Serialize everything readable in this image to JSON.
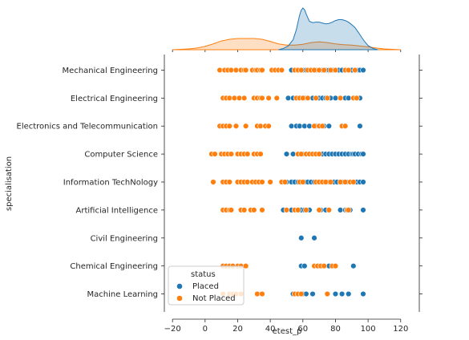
{
  "chart_data": {
    "type": "scatter",
    "xlabel": "etest_p",
    "ylabel": "specialisation",
    "xlim": [
      -25,
      127
    ],
    "xticks": [
      -20,
      0,
      20,
      40,
      60,
      80,
      100,
      120
    ],
    "categories": [
      "Mechanical Engineering",
      "Electrical Engineering",
      "Electronics and Telecommunication",
      "Computer Science",
      "Information TechNology",
      "Artificial Intelligence",
      "Civil Engineering",
      "Chemical Engineering",
      "Machine Learning"
    ],
    "legend": {
      "title": "status",
      "position": "lower-left",
      "entries": [
        "Placed",
        "Not Placed"
      ]
    },
    "colors": {
      "Placed": "#1f77b4",
      "Not Placed": "#ff7f0e"
    },
    "marginal": "kde",
    "series": [
      {
        "name": "Placed",
        "points": [
          [
            "Mechanical Engineering",
            [
              53,
              56,
              58,
              60,
              62,
              64,
              66,
              68,
              70,
              72,
              74,
              76,
              78,
              80,
              82,
              84,
              86,
              88,
              90,
              92,
              94,
              95,
              97
            ]
          ],
          [
            "Electrical Engineering",
            [
              51,
              54,
              57,
              59,
              61,
              63,
              66,
              70,
              72,
              74,
              77,
              80,
              86,
              88,
              93,
              95
            ]
          ],
          [
            "Electronics and Telecommunication",
            [
              53,
              56,
              58,
              61,
              64,
              68,
              70,
              73,
              76,
              86,
              95
            ]
          ],
          [
            "Computer Science",
            [
              50,
              54,
              58,
              60,
              62,
              66,
              68,
              70,
              72,
              74,
              76,
              78,
              80,
              82,
              84,
              86,
              88,
              90,
              91,
              92,
              94,
              96,
              97
            ]
          ],
          [
            "Information TechNology",
            [
              50,
              53,
              55,
              57,
              59,
              61,
              63,
              65,
              67,
              69,
              71,
              73,
              75,
              77,
              79,
              81,
              83,
              85,
              87,
              89,
              91,
              93,
              95,
              97
            ]
          ],
          [
            "Artificial Intelligence",
            [
              48,
              53,
              57,
              59,
              61,
              64,
              71,
              74,
              83,
              86,
              89,
              97
            ]
          ],
          [
            "Civil Engineering",
            [
              59,
              67
            ]
          ],
          [
            "Chemical Engineering",
            [
              59,
              61,
              70,
              72,
              76,
              91
            ]
          ],
          [
            "Machine Learning",
            [
              54,
              56,
              58,
              60,
              62,
              66,
              80,
              84,
              88,
              97
            ]
          ]
        ]
      },
      {
        "name": "Not Placed",
        "points": [
          [
            "Mechanical Engineering",
            [
              9,
              12,
              14,
              16,
              19,
              22,
              24,
              25,
              29,
              31,
              32,
              34,
              35,
              41,
              43,
              45,
              47,
              55,
              57,
              59,
              63,
              65,
              67,
              70,
              73,
              77,
              80,
              86,
              88,
              92
            ]
          ],
          [
            "Electrical Engineering",
            [
              11,
              13,
              15,
              18,
              21,
              24,
              30,
              32,
              34,
              35,
              39,
              44,
              56,
              58,
              60,
              63,
              68,
              75,
              83,
              91,
              93
            ]
          ],
          [
            "Electronics and Telecommunication",
            [
              9,
              11,
              13,
              15,
              19,
              25,
              32,
              34,
              37,
              39,
              67,
              70,
              72,
              84,
              86
            ]
          ],
          [
            "Computer Science",
            [
              4,
              6,
              10,
              12,
              14,
              16,
              20,
              22,
              24,
              26,
              30,
              32,
              34,
              57,
              59,
              62,
              64,
              66,
              68,
              70
            ]
          ],
          [
            "Information TechNology",
            [
              5,
              11,
              13,
              15,
              20,
              22,
              24,
              26,
              29,
              31,
              33,
              35,
              40,
              47,
              49,
              58,
              60,
              68,
              70,
              72,
              74,
              77,
              83,
              86,
              89,
              91
            ]
          ],
          [
            "Artificial Intelligence",
            [
              11,
              13,
              15,
              16,
              22,
              24,
              28,
              30,
              35,
              50,
              55,
              57,
              62,
              70,
              76,
              87,
              88
            ]
          ],
          [
            "Civil Engineering",
            []
          ],
          [
            "Chemical Engineering",
            [
              11,
              13,
              15,
              17,
              20,
              22,
              25,
              67,
              69,
              71,
              73,
              78,
              80
            ]
          ],
          [
            "Machine Learning",
            [
              11,
              15,
              17,
              19,
              22,
              32,
              35,
              55,
              57,
              59,
              75
            ]
          ]
        ]
      }
    ],
    "kde": [
      {
        "name": "Placed",
        "x": [
          45,
          48,
          51,
          54,
          56,
          57,
          58,
          59,
          60,
          61,
          62,
          64,
          66,
          68,
          70,
          72,
          74,
          76,
          78,
          80,
          82,
          84,
          86,
          88,
          90,
          92,
          94,
          96,
          98,
          100,
          103,
          106
        ],
        "density": [
          0,
          0.03,
          0.09,
          0.24,
          0.48,
          0.66,
          0.83,
          0.95,
          1.0,
          0.96,
          0.86,
          0.68,
          0.65,
          0.66,
          0.66,
          0.64,
          0.62,
          0.63,
          0.66,
          0.7,
          0.72,
          0.72,
          0.7,
          0.66,
          0.6,
          0.53,
          0.42,
          0.3,
          0.19,
          0.1,
          0.03,
          0
        ]
      },
      {
        "name": "Not Placed",
        "x": [
          -20,
          -10,
          -5,
          0,
          5,
          10,
          15,
          20,
          25,
          30,
          35,
          40,
          45,
          50,
          55,
          60,
          65,
          70,
          75,
          80,
          85,
          90,
          95,
          100,
          105,
          110,
          115,
          120
        ],
        "density": [
          0,
          0.02,
          0.04,
          0.08,
          0.14,
          0.21,
          0.25,
          0.27,
          0.27,
          0.27,
          0.25,
          0.2,
          0.14,
          0.11,
          0.11,
          0.13,
          0.17,
          0.19,
          0.17,
          0.14,
          0.12,
          0.11,
          0.09,
          0.07,
          0.04,
          0.02,
          0.01,
          0
        ]
      }
    ]
  }
}
